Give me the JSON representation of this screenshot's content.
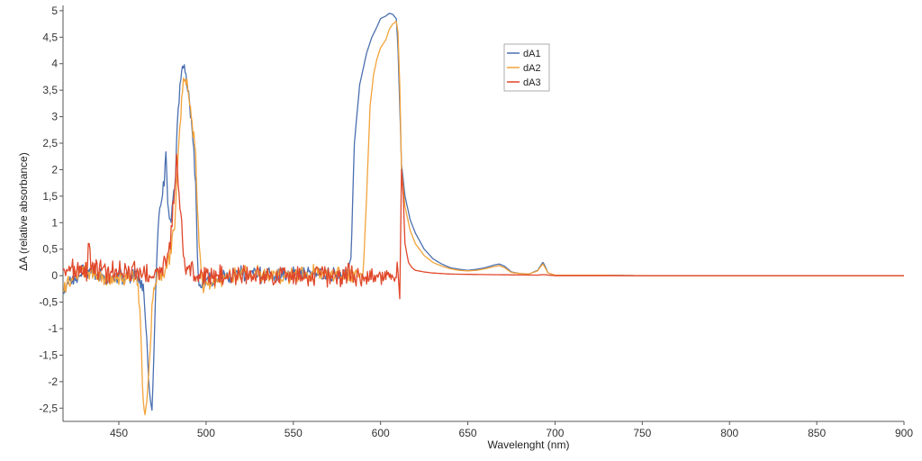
{
  "chart_data": {
    "type": "line",
    "title": "",
    "xlabel": "Wavelenght (nm)",
    "ylabel": "ΔA (relative absorbance)",
    "xlim": [
      418,
      900
    ],
    "ylim": [
      -2.75,
      5.1
    ],
    "x_ticks": [
      450,
      500,
      550,
      600,
      650,
      700,
      750,
      800,
      850,
      900
    ],
    "x_tick_labels": [
      "450",
      "500",
      "550",
      "600",
      "650",
      "700",
      "750",
      "800",
      "850",
      "900"
    ],
    "y_ticks": [
      -2.5,
      -2,
      -1.5,
      -1,
      -0.5,
      0,
      0.5,
      1,
      1.5,
      2,
      2.5,
      3,
      3.5,
      4,
      4.5,
      5
    ],
    "y_tick_labels": [
      "-2,5",
      "-2",
      "-1,5",
      "-1",
      "-0,5",
      "0",
      "0,5",
      "1",
      "1,5",
      "2",
      "2,5",
      "3",
      "3,5",
      "4",
      "4,5",
      "5"
    ],
    "grid": false,
    "legend_position": "top-center-right",
    "series": [
      {
        "name": "dA1",
        "color": "#4a6fb0",
        "noise": {
          "from": 418,
          "to": 584,
          "amplitude": 0.12
        },
        "x": [
          418,
          430,
          445,
          460,
          464,
          466,
          467,
          468,
          469,
          470,
          471,
          472,
          474,
          476,
          477,
          478,
          480,
          482,
          484,
          486,
          487,
          488,
          490,
          492,
          494,
          495,
          496,
          498,
          500,
          520,
          540,
          560,
          580,
          583,
          585,
          588,
          590,
          592,
          595,
          598,
          600,
          603,
          605,
          607,
          609,
          610,
          611,
          612,
          614,
          617,
          620,
          625,
          630,
          635,
          640,
          645,
          650,
          655,
          660,
          665,
          668,
          671,
          675,
          680,
          685,
          690,
          692,
          693,
          694,
          696,
          700,
          720,
          750,
          800,
          850,
          900
        ],
        "y": [
          -0.3,
          0.1,
          -0.1,
          0.05,
          -0.3,
          -1.2,
          -2.0,
          -2.3,
          -2.5,
          -1.6,
          -0.4,
          0.6,
          1.4,
          1.8,
          2.25,
          1.3,
          1.1,
          1.6,
          3.2,
          3.9,
          3.9,
          3.8,
          3.4,
          2.8,
          1.8,
          0.3,
          -0.3,
          -0.2,
          -0.1,
          0.05,
          0,
          0.05,
          0,
          0.3,
          2.5,
          3.6,
          3.9,
          4.2,
          4.5,
          4.7,
          4.85,
          4.9,
          4.95,
          4.93,
          4.85,
          4.3,
          3.2,
          2.1,
          1.5,
          1.05,
          0.8,
          0.5,
          0.32,
          0.22,
          0.15,
          0.12,
          0.1,
          0.12,
          0.15,
          0.2,
          0.22,
          0.18,
          0.07,
          0.04,
          0.03,
          0.1,
          0.2,
          0.25,
          0.2,
          0.05,
          0.01,
          0.01,
          0.0,
          0.0,
          0.0,
          0.0
        ]
      },
      {
        "name": "dA2",
        "color": "#f2a33a",
        "noise": {
          "from": 418,
          "to": 590,
          "amplitude": 0.12
        },
        "x": [
          418,
          430,
          445,
          460,
          462,
          463,
          464,
          465,
          466,
          467,
          468,
          469,
          470,
          472,
          476,
          478,
          480,
          482,
          484,
          486,
          487,
          488,
          489,
          490,
          492,
          494,
          496,
          498,
          500,
          520,
          540,
          560,
          580,
          590,
          592,
          594,
          596,
          598,
          600,
          603,
          605,
          607,
          609,
          610,
          611,
          612,
          614,
          617,
          620,
          625,
          630,
          635,
          640,
          645,
          650,
          655,
          660,
          665,
          668,
          671,
          675,
          680,
          685,
          690,
          692,
          693,
          694,
          696,
          700,
          720,
          750,
          800,
          850,
          900
        ],
        "y": [
          -0.2,
          0.1,
          -0.1,
          0.05,
          -0.5,
          -1.5,
          -2.3,
          -2.7,
          -2.4,
          -2.0,
          -1.3,
          -0.6,
          -0.2,
          0.0,
          0.1,
          0.25,
          0.5,
          1.0,
          2.3,
          3.3,
          3.7,
          3.75,
          3.7,
          3.3,
          2.9,
          2.3,
          0.5,
          -0.2,
          -0.15,
          0.05,
          0,
          0.05,
          0,
          0.0,
          1.5,
          3.2,
          3.8,
          4.1,
          4.3,
          4.45,
          4.65,
          4.75,
          4.8,
          4.6,
          3.6,
          2.0,
          1.3,
          0.85,
          0.6,
          0.38,
          0.25,
          0.18,
          0.13,
          0.1,
          0.09,
          0.1,
          0.13,
          0.17,
          0.19,
          0.15,
          0.06,
          0.04,
          0.03,
          0.09,
          0.18,
          0.22,
          0.17,
          0.05,
          0.01,
          0.01,
          0.0,
          0.0,
          0.0,
          0.0
        ]
      },
      {
        "name": "dA3",
        "color": "#e0472a",
        "noise": {
          "from": 418,
          "to": 611,
          "amplitude": 0.16
        },
        "x": [
          418,
          432,
          433,
          434,
          445,
          460,
          470,
          478,
          480,
          482,
          483,
          484,
          486,
          488,
          500,
          520,
          540,
          560,
          580,
          600,
          610,
          611,
          612,
          613,
          614,
          616,
          618,
          620,
          625,
          630,
          640,
          660,
          690,
          693,
          700,
          750,
          800,
          850,
          900
        ],
        "y": [
          0.1,
          0.1,
          0.8,
          0.2,
          0.05,
          0.1,
          -0.05,
          0.3,
          0.8,
          1.6,
          2.3,
          1.8,
          0.9,
          0.1,
          0.0,
          0.0,
          0.0,
          0.0,
          0.0,
          0.0,
          0.05,
          -0.3,
          2.0,
          1.5,
          0.6,
          0.25,
          0.15,
          0.1,
          0.07,
          0.05,
          0.03,
          0.02,
          0.01,
          0.02,
          0.0,
          0.0,
          0.0,
          0.0,
          0.0
        ]
      }
    ]
  }
}
